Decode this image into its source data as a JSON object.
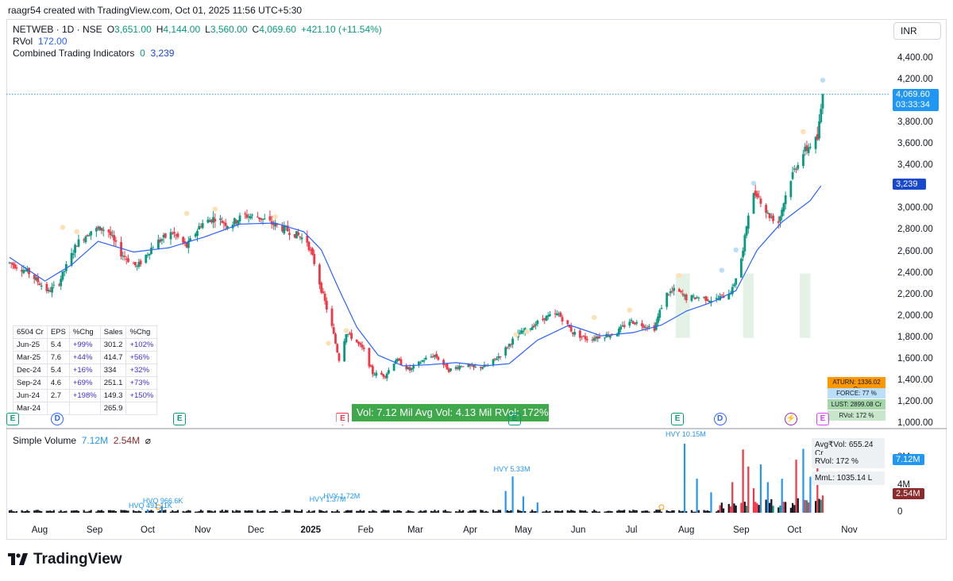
{
  "credit": "raagr54 created with TradingView.com, Oct 01, 2025 11:56 UTC+5:30",
  "header": {
    "symbol": "NETWEB · 1D · NSE",
    "o_label": "O",
    "o_value": "3,651.00",
    "h_label": "H",
    "h_value": "4,144.00",
    "l_label": "L",
    "l_value": "3,560.00",
    "c_label": "C",
    "c_value": "4,069.60",
    "change": "+421.10 (+11.54%)"
  },
  "indicators": [
    {
      "name": "RVol",
      "v1": "172.00",
      "v2": ""
    },
    {
      "name": "Combined Trading Indicators",
      "v1": "0",
      "v2": "3,239"
    }
  ],
  "currency": "INR",
  "price_axis": [
    "4,400.00",
    "4,200.00",
    "3,800.00",
    "3,600.00",
    "3,400.00",
    "3,000.00",
    "2,800.00",
    "2,600.00",
    "2,400.00",
    "2,200.00",
    "2,000.00",
    "1,800.00",
    "1,600.00",
    "1,400.00",
    "1,200.00",
    "1,000.00"
  ],
  "last_price_badge": {
    "price": "4,069.60",
    "countdown": "03:33:34",
    "color": "#2196f3"
  },
  "indicator_badge": {
    "value": "3,239",
    "color": "#1848cc"
  },
  "financials": {
    "header": [
      "6504 Cr",
      "EPS",
      "%Chg",
      "Sales",
      "%Chg"
    ],
    "rows": [
      [
        "Jun-25",
        "5.4",
        "+99%",
        "301.2",
        "+102%"
      ],
      [
        "Mar-25",
        "7.6",
        "+44%",
        "414.7",
        "+56%"
      ],
      [
        "Dec-24",
        "5.4",
        "+16%",
        "334",
        "+32%"
      ],
      [
        "Sep-24",
        "4.6",
        "+69%",
        "251.1",
        "+73%"
      ],
      [
        "Jun-24",
        "2.7",
        "+198%",
        "149.3",
        "+150%"
      ],
      [
        "Mar-24",
        "",
        "",
        "265.9",
        ""
      ]
    ]
  },
  "volume_summary": "Vol: 7.12 Mil   Avg Vol: 4.13 Mil   RVol: 172%",
  "right_panel": [
    {
      "text": "ATURN: 1336.02 Cr",
      "bg": "#ff9800",
      "color": "#131722"
    },
    {
      "text": "FORCE: 77 %",
      "bg": "#bbdefb",
      "color": "#131722"
    },
    {
      "text": "LUST: 2899.08 Cr",
      "bg": "#a5d6a7",
      "color": "#131722"
    },
    {
      "text": "RVol: 172 %",
      "bg": "#c8e6c9",
      "color": "#131722"
    }
  ],
  "events": [
    {
      "t": "E",
      "cls": "E",
      "day": 0
    },
    {
      "t": "D",
      "cls": "D",
      "day": 27
    },
    {
      "t": "E",
      "cls": "E",
      "day": 96
    },
    {
      "t": "E",
      "cls": "Ered",
      "day": 188
    },
    {
      "t": "E",
      "cls": "E",
      "day": 285
    },
    {
      "t": "E",
      "cls": "E",
      "day": 377
    },
    {
      "t": "D",
      "cls": "D",
      "day": 401
    },
    {
      "t": "⚡",
      "cls": "bolt",
      "day": 441
    },
    {
      "t": "E",
      "cls": "Epink",
      "day": 459
    }
  ],
  "volume_pane": {
    "title": "Simple Volume",
    "v1": "7.12M",
    "v2": "2.54M",
    "icon": "⌀",
    "axis": [
      "8M",
      "4M",
      "0"
    ],
    "badge_v1": "7.12M",
    "badge_v2": "2.54M",
    "panel": [
      "Avg₹Vol: 655.24 Cr",
      "RVol: 172 %",
      "MmL: 1035.14 L"
    ],
    "notes": [
      {
        "text": "HVY 10.15M",
        "day": 381
      },
      {
        "text": "HVY 5.33M",
        "day": 284
      },
      {
        "text": "HVY 1.72M",
        "day": 188
      },
      {
        "text": "HVY 1.37M",
        "day": 180
      },
      {
        "text": "HVQ 966.6K",
        "day": 86
      },
      {
        "text": "HVQ 491.11K",
        "day": 78
      }
    ]
  },
  "x_axis": [
    {
      "label": "Aug",
      "day": 17
    },
    {
      "label": "Sep",
      "day": 48
    },
    {
      "label": "Oct",
      "day": 78
    },
    {
      "label": "Nov",
      "day": 109
    },
    {
      "label": "Dec",
      "day": 139
    },
    {
      "label": "2025",
      "day": 170
    },
    {
      "label": "Feb",
      "day": 201
    },
    {
      "label": "Mar",
      "day": 229
    },
    {
      "label": "Apr",
      "day": 260
    },
    {
      "label": "May",
      "day": 290
    },
    {
      "label": "Jun",
      "day": 321
    },
    {
      "label": "Jul",
      "day": 351
    },
    {
      "label": "Aug",
      "day": 382
    },
    {
      "label": "Sep",
      "day": 413
    },
    {
      "label": "Oct",
      "day": 443
    },
    {
      "label": "Nov",
      "day": 474
    }
  ],
  "brand": "TradingView",
  "chart_data": {
    "type": "candlestick",
    "symbol": "NETWEB",
    "interval": "1D",
    "exchange": "NSE",
    "y_range": [
      1000,
      4400
    ],
    "x_range_days": [
      0,
      475
    ],
    "last_close": 4069.6,
    "indicator_last": 3239,
    "colors": {
      "up": "#089981",
      "down": "#f23645",
      "ma": "#2962ff",
      "vol_up": "#2196f3",
      "vol_down": "#f23645",
      "vol_normal": "#131722"
    },
    "price_keypoints": [
      [
        0,
        2500
      ],
      [
        10,
        2420
      ],
      [
        22,
        2230
      ],
      [
        28,
        2320
      ],
      [
        38,
        2680
      ],
      [
        46,
        2800
      ],
      [
        55,
        2820
      ],
      [
        62,
        2600
      ],
      [
        72,
        2460
      ],
      [
        82,
        2680
      ],
      [
        92,
        2780
      ],
      [
        100,
        2650
      ],
      [
        108,
        2860
      ],
      [
        116,
        2920
      ],
      [
        124,
        2850
      ],
      [
        132,
        2940
      ],
      [
        140,
        2930
      ],
      [
        150,
        2850
      ],
      [
        160,
        2780
      ],
      [
        168,
        2700
      ],
      [
        172,
        2500
      ],
      [
        176,
        2250
      ],
      [
        182,
        1900
      ],
      [
        186,
        1600
      ],
      [
        190,
        1850
      ],
      [
        195,
        1780
      ],
      [
        200,
        1680
      ],
      [
        205,
        1470
      ],
      [
        212,
        1450
      ],
      [
        218,
        1600
      ],
      [
        226,
        1500
      ],
      [
        234,
        1600
      ],
      [
        240,
        1640
      ],
      [
        248,
        1500
      ],
      [
        256,
        1550
      ],
      [
        262,
        1520
      ],
      [
        270,
        1540
      ],
      [
        278,
        1660
      ],
      [
        286,
        1820
      ],
      [
        294,
        1900
      ],
      [
        302,
        1990
      ],
      [
        310,
        2020
      ],
      [
        318,
        1850
      ],
      [
        326,
        1790
      ],
      [
        334,
        1820
      ],
      [
        342,
        1840
      ],
      [
        350,
        1960
      ],
      [
        358,
        1920
      ],
      [
        364,
        1890
      ],
      [
        370,
        2200
      ],
      [
        376,
        2250
      ],
      [
        382,
        2170
      ],
      [
        390,
        2180
      ],
      [
        398,
        2150
      ],
      [
        404,
        2200
      ],
      [
        408,
        2250
      ],
      [
        414,
        2600
      ],
      [
        418,
        3100
      ],
      [
        422,
        3150
      ],
      [
        428,
        2950
      ],
      [
        434,
        2880
      ],
      [
        440,
        3250
      ],
      [
        446,
        3480
      ],
      [
        452,
        3600
      ],
      [
        456,
        3650
      ],
      [
        459,
        4070
      ]
    ],
    "ma_keypoints": [
      [
        0,
        2550
      ],
      [
        20,
        2330
      ],
      [
        35,
        2480
      ],
      [
        50,
        2700
      ],
      [
        70,
        2600
      ],
      [
        90,
        2640
      ],
      [
        110,
        2740
      ],
      [
        130,
        2860
      ],
      [
        150,
        2870
      ],
      [
        166,
        2790
      ],
      [
        176,
        2620
      ],
      [
        186,
        2250
      ],
      [
        196,
        1900
      ],
      [
        208,
        1640
      ],
      [
        222,
        1540
      ],
      [
        236,
        1550
      ],
      [
        252,
        1570
      ],
      [
        268,
        1540
      ],
      [
        282,
        1560
      ],
      [
        298,
        1780
      ],
      [
        316,
        1920
      ],
      [
        334,
        1820
      ],
      [
        352,
        1850
      ],
      [
        368,
        1920
      ],
      [
        382,
        2050
      ],
      [
        396,
        2130
      ],
      [
        410,
        2240
      ],
      [
        422,
        2620
      ],
      [
        436,
        2880
      ],
      [
        452,
        3080
      ],
      [
        459,
        3239
      ]
    ],
    "volume_spikes": [
      [
        78,
        0.49
      ],
      [
        86,
        0.97
      ],
      [
        180,
        1.37
      ],
      [
        188,
        1.72
      ],
      [
        280,
        3.2
      ],
      [
        284,
        5.33
      ],
      [
        290,
        2.4
      ],
      [
        298,
        1.5
      ],
      [
        355,
        4.0
      ],
      [
        381,
        10.15
      ],
      [
        388,
        5.0
      ],
      [
        396,
        3.0
      ],
      [
        408,
        4.5
      ],
      [
        411,
        8.9
      ],
      [
        414,
        9.3
      ],
      [
        417,
        6.8
      ],
      [
        420,
        3.6
      ],
      [
        424,
        7.1
      ],
      [
        428,
        4.5
      ],
      [
        432,
        5.5
      ],
      [
        436,
        5.0
      ],
      [
        440,
        6.2
      ],
      [
        444,
        7.8
      ],
      [
        448,
        9.4
      ],
      [
        452,
        5.3
      ],
      [
        456,
        7.12
      ],
      [
        459,
        2.54
      ]
    ],
    "volume_axis_max": 10.5
  }
}
